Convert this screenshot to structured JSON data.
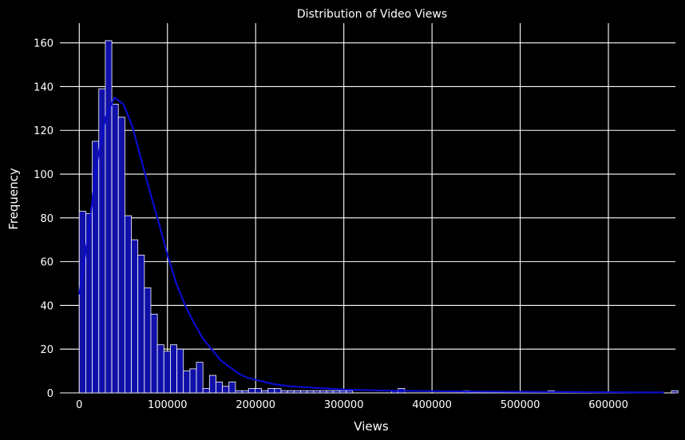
{
  "chart_data": {
    "type": "bar",
    "subtype": "histogram-with-kde",
    "title": "Distribution of Video Views",
    "xlabel": "Views",
    "ylabel": "Frequency",
    "xlim": [
      -22000,
      676000
    ],
    "ylim": [
      0,
      169
    ],
    "xticks": [
      0,
      100000,
      200000,
      300000,
      400000,
      500000,
      600000
    ],
    "xtick_labels": [
      "0",
      "100000",
      "200000",
      "300000",
      "400000",
      "500000",
      "600000"
    ],
    "yticks": [
      0,
      20,
      40,
      60,
      80,
      100,
      120,
      140,
      160
    ],
    "ytick_labels": [
      "0",
      "20",
      "40",
      "60",
      "80",
      "100",
      "120",
      "140",
      "160"
    ],
    "grid": true,
    "legend": null,
    "bin_start": 0,
    "bin_width": 7380,
    "counts": [
      83,
      82,
      115,
      139,
      161,
      132,
      126,
      81,
      70,
      63,
      48,
      36,
      22,
      19,
      22,
      20,
      10,
      11,
      14,
      2,
      8,
      5,
      3,
      5,
      1,
      1,
      2,
      2,
      1,
      2,
      2,
      1,
      1,
      1,
      1,
      1,
      1,
      1,
      1,
      1,
      1,
      1,
      0,
      0,
      0,
      0,
      0,
      0,
      1,
      2,
      0,
      0,
      0,
      0,
      0,
      0,
      0,
      0,
      0,
      1,
      0,
      0,
      0,
      0,
      0,
      0,
      0,
      0,
      0,
      0,
      0,
      0,
      1,
      0,
      0,
      0,
      0,
      0,
      0,
      0,
      0,
      0,
      0,
      0,
      0,
      0,
      0,
      0,
      0,
      0,
      0,
      1
    ],
    "kde": {
      "x": [
        0,
        10000,
        20000,
        30000,
        40000,
        50000,
        60000,
        70000,
        80000,
        90000,
        100000,
        110000,
        120000,
        130000,
        140000,
        150000,
        160000,
        170000,
        180000,
        190000,
        200000,
        220000,
        240000,
        260000,
        280000,
        300000,
        330000,
        360000,
        400000,
        450000,
        500000,
        560000,
        600000,
        663000
      ],
      "y": [
        45,
        72,
        105,
        126,
        135,
        132,
        122,
        107,
        92,
        78,
        63,
        50,
        40,
        32,
        25,
        20,
        15,
        12,
        9,
        7,
        6,
        4,
        3,
        2.5,
        2,
        1.5,
        1.2,
        1,
        0.8,
        0.6,
        0.5,
        0.4,
        0.3,
        0.2
      ]
    },
    "colors": {
      "bar_fill": "#1010a8",
      "bar_edge": "#ffffff",
      "kde_line": "#0b0bd0",
      "grid": "#ffffff",
      "background": "#000000",
      "text": "#ffffff"
    }
  }
}
